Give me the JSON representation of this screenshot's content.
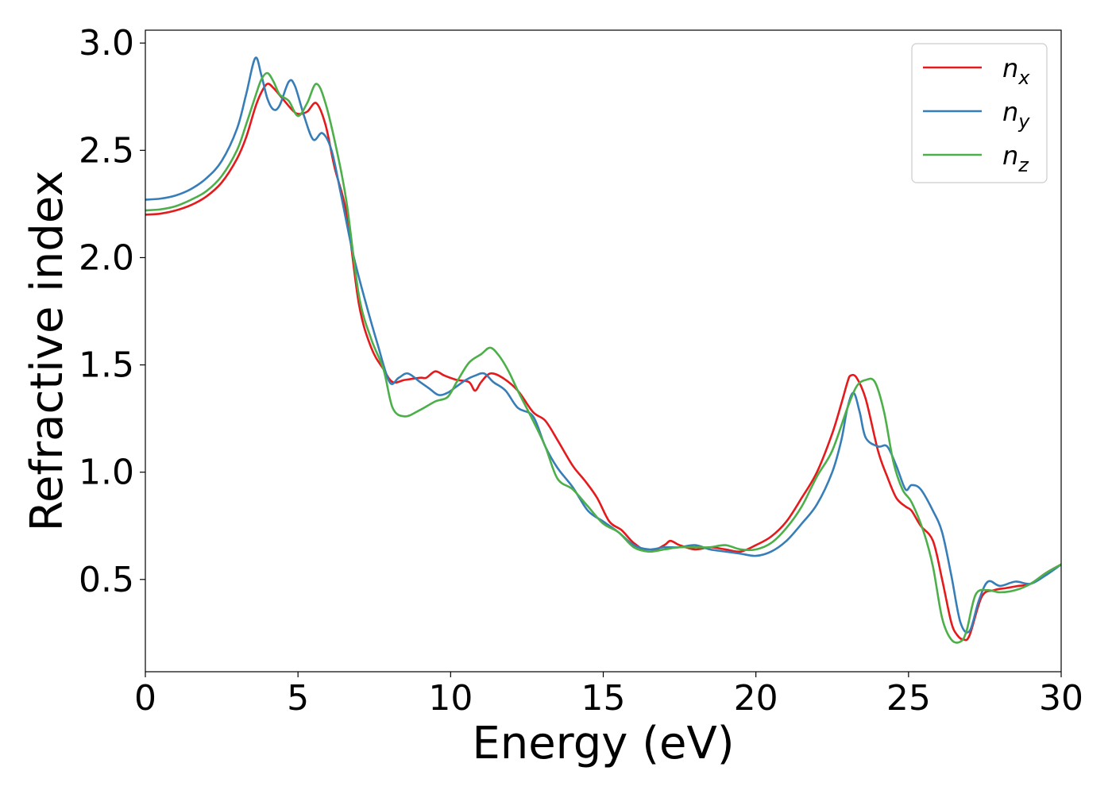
{
  "chart_data": {
    "type": "line",
    "xlabel": "Energy (eV)",
    "ylabel": "Refractive index",
    "xlim": [
      0,
      30
    ],
    "ylim": [
      0.07,
      3.06
    ],
    "xticks": [
      0,
      5,
      10,
      15,
      20,
      25,
      30
    ],
    "xtick_labels": [
      "0",
      "5",
      "10",
      "15",
      "20",
      "25",
      "30"
    ],
    "yticks": [
      0.5,
      1.0,
      1.5,
      2.0,
      2.5,
      3.0
    ],
    "ytick_labels": [
      "0.5",
      "1.0",
      "1.5",
      "2.0",
      "2.5",
      "3.0"
    ],
    "grid": false,
    "legend_position": "top-right",
    "series": [
      {
        "name": "n",
        "subscript": "x",
        "color": "#e41a1c",
        "x": [
          0,
          0.5,
          1,
          1.5,
          2,
          2.5,
          3,
          3.3,
          3.6,
          3.8,
          4.0,
          4.2,
          4.5,
          4.8,
          5.0,
          5.3,
          5.6,
          5.9,
          6.2,
          6.6,
          7.0,
          7.4,
          7.8,
          8.1,
          8.5,
          9.0,
          9.2,
          9.5,
          9.8,
          10.2,
          10.6,
          10.8,
          11.0,
          11.3,
          11.7,
          12.2,
          12.7,
          13.1,
          13.5,
          14.0,
          14.4,
          14.8,
          15.2,
          15.6,
          16.0,
          16.5,
          17.0,
          17.2,
          17.5,
          18.0,
          18.5,
          19.0,
          19.5,
          20.0,
          20.5,
          21.0,
          21.5,
          22.0,
          22.5,
          22.8,
          23.0,
          23.1,
          23.3,
          23.6,
          24.0,
          24.3,
          24.6,
          24.9,
          25.1,
          25.4,
          25.8,
          26.1,
          26.4,
          26.6,
          26.8,
          27.0,
          27.4,
          27.8,
          28.2,
          28.6,
          29.0,
          29.5,
          30.0
        ],
        "y": [
          2.2,
          2.205,
          2.22,
          2.245,
          2.285,
          2.35,
          2.46,
          2.56,
          2.7,
          2.77,
          2.81,
          2.79,
          2.74,
          2.69,
          2.67,
          2.68,
          2.72,
          2.62,
          2.42,
          2.2,
          1.78,
          1.58,
          1.48,
          1.42,
          1.43,
          1.44,
          1.44,
          1.47,
          1.45,
          1.43,
          1.42,
          1.38,
          1.42,
          1.46,
          1.44,
          1.38,
          1.28,
          1.24,
          1.15,
          1.03,
          0.96,
          0.88,
          0.77,
          0.73,
          0.67,
          0.63,
          0.66,
          0.68,
          0.66,
          0.64,
          0.65,
          0.64,
          0.63,
          0.66,
          0.7,
          0.77,
          0.88,
          1.0,
          1.18,
          1.32,
          1.42,
          1.45,
          1.44,
          1.34,
          1.1,
          0.98,
          0.88,
          0.84,
          0.82,
          0.75,
          0.68,
          0.5,
          0.3,
          0.24,
          0.22,
          0.24,
          0.42,
          0.45,
          0.46,
          0.47,
          0.48,
          0.53,
          0.57
        ]
      },
      {
        "name": "n",
        "subscript": "y",
        "color": "#377eb8",
        "x": [
          0,
          0.5,
          1,
          1.5,
          2,
          2.5,
          3,
          3.3,
          3.6,
          3.8,
          4.0,
          4.2,
          4.4,
          4.7,
          4.9,
          5.2,
          5.5,
          5.8,
          6.1,
          6.4,
          6.8,
          7.2,
          7.6,
          8.0,
          8.3,
          8.6,
          9.0,
          9.3,
          9.6,
          9.9,
          10.2,
          10.5,
          10.8,
          11.1,
          11.4,
          11.8,
          12.2,
          12.7,
          13.1,
          13.5,
          14.0,
          14.5,
          15.0,
          15.5,
          16.0,
          16.5,
          17.0,
          17.5,
          18.0,
          18.5,
          19.0,
          19.5,
          20.0,
          20.5,
          21.0,
          21.5,
          22.0,
          22.5,
          22.8,
          23.0,
          23.2,
          23.4,
          23.6,
          24.0,
          24.3,
          24.6,
          24.9,
          25.1,
          25.4,
          25.8,
          26.1,
          26.4,
          26.7,
          27.0,
          27.3,
          27.6,
          28.0,
          28.5,
          29.0,
          29.5,
          30.0
        ],
        "y": [
          2.27,
          2.275,
          2.29,
          2.32,
          2.37,
          2.45,
          2.6,
          2.76,
          2.93,
          2.85,
          2.74,
          2.69,
          2.71,
          2.82,
          2.8,
          2.66,
          2.55,
          2.58,
          2.5,
          2.3,
          2.02,
          1.8,
          1.6,
          1.42,
          1.44,
          1.46,
          1.42,
          1.39,
          1.36,
          1.37,
          1.4,
          1.43,
          1.45,
          1.46,
          1.42,
          1.38,
          1.3,
          1.26,
          1.12,
          1.02,
          0.93,
          0.82,
          0.77,
          0.72,
          0.66,
          0.64,
          0.65,
          0.65,
          0.66,
          0.64,
          0.63,
          0.62,
          0.61,
          0.63,
          0.68,
          0.76,
          0.85,
          1.0,
          1.15,
          1.3,
          1.37,
          1.28,
          1.16,
          1.12,
          1.12,
          1.03,
          0.92,
          0.94,
          0.92,
          0.82,
          0.72,
          0.52,
          0.3,
          0.26,
          0.4,
          0.49,
          0.47,
          0.49,
          0.48,
          0.52,
          0.57
        ]
      },
      {
        "name": "n",
        "subscript": "z",
        "color": "#4daf4a",
        "x": [
          0,
          0.5,
          1,
          1.5,
          2,
          2.5,
          3,
          3.3,
          3.6,
          3.8,
          4.0,
          4.2,
          4.4,
          4.7,
          5.0,
          5.3,
          5.6,
          5.9,
          6.3,
          6.6,
          7.0,
          7.4,
          7.8,
          8.1,
          8.5,
          9.0,
          9.5,
          9.9,
          10.2,
          10.6,
          11.0,
          11.3,
          11.6,
          11.9,
          12.2,
          12.7,
          13.1,
          13.5,
          14.0,
          14.5,
          15.0,
          15.5,
          16.0,
          16.5,
          17.0,
          17.5,
          18.0,
          18.5,
          19.0,
          19.5,
          20.0,
          20.5,
          21.0,
          21.5,
          22.0,
          22.5,
          23.0,
          23.3,
          23.6,
          23.9,
          24.2,
          24.5,
          24.8,
          25.1,
          25.5,
          25.8,
          26.1,
          26.4,
          26.7,
          26.9,
          27.2,
          27.6,
          28.0,
          28.5,
          29.0,
          29.5,
          30.0
        ],
        "y": [
          2.22,
          2.225,
          2.24,
          2.27,
          2.31,
          2.38,
          2.5,
          2.62,
          2.75,
          2.83,
          2.86,
          2.82,
          2.76,
          2.73,
          2.66,
          2.72,
          2.81,
          2.72,
          2.48,
          2.25,
          1.82,
          1.62,
          1.48,
          1.3,
          1.26,
          1.29,
          1.33,
          1.35,
          1.42,
          1.51,
          1.55,
          1.58,
          1.54,
          1.47,
          1.38,
          1.24,
          1.12,
          0.97,
          0.92,
          0.84,
          0.76,
          0.72,
          0.65,
          0.63,
          0.64,
          0.65,
          0.65,
          0.65,
          0.66,
          0.64,
          0.64,
          0.67,
          0.74,
          0.84,
          0.98,
          1.1,
          1.3,
          1.4,
          1.43,
          1.42,
          1.28,
          1.05,
          0.92,
          0.86,
          0.72,
          0.56,
          0.32,
          0.22,
          0.21,
          0.26,
          0.43,
          0.45,
          0.44,
          0.45,
          0.48,
          0.53,
          0.57
        ]
      }
    ]
  }
}
